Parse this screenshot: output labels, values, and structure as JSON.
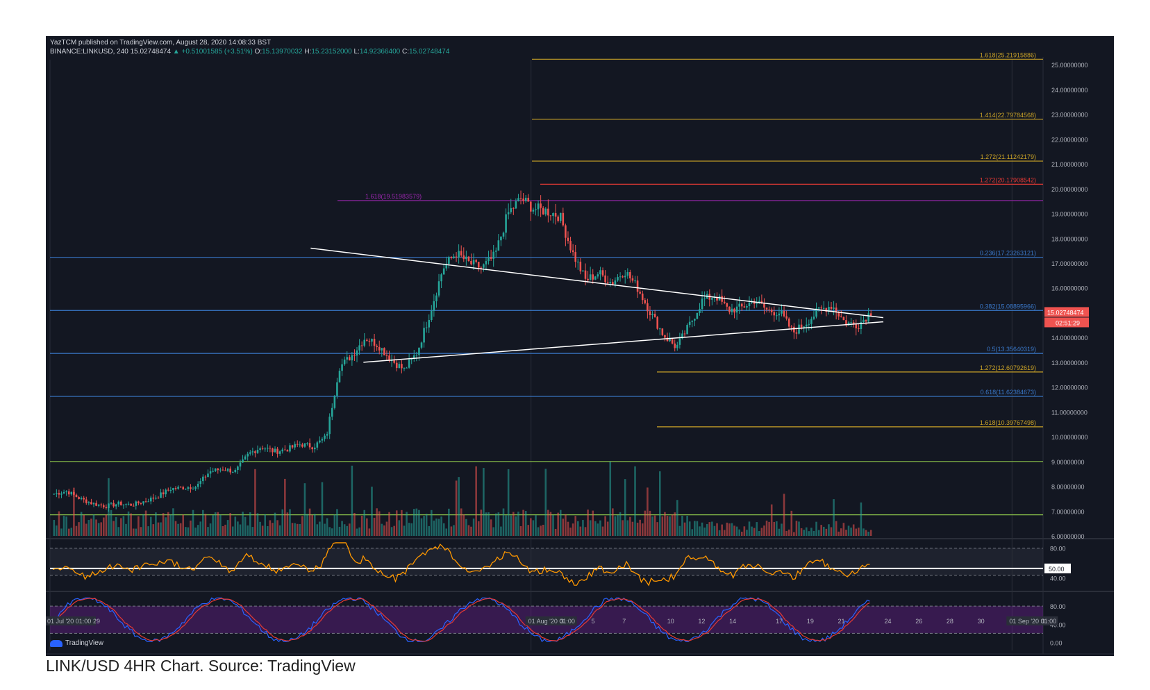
{
  "header": {
    "published": "YazTCM published on TradingView.com, August 28, 2020 14:08:33 BST",
    "symbol": "BINANCE:LINKUSD, 240",
    "last": "15.02748474",
    "change": "▲ +0.51001585 (+3.51%)",
    "o_label": "O:",
    "o_value": "15.13970032",
    "h_label": "H:",
    "h_value": "15.23152000",
    "l_label": "L:",
    "l_value": "14.92366400",
    "c_label": "C:",
    "c_value": "15.02748474"
  },
  "brand": "TradingView",
  "caption": "LINK/USD 4HR Chart. Source: TradingView",
  "colors": {
    "background": "#131722",
    "up": "#26a69a",
    "down": "#ef5350",
    "fib_yellow": "#c9a227",
    "fib_blue": "#3a78c9",
    "red_level": "#e53935",
    "purple_level": "#9c27b0",
    "green_level": "#8bc34a",
    "rsi": "#ff9800",
    "stoch_k": "#2962ff",
    "stoch_d": "#e53935"
  },
  "chart_data": {
    "type": "candlestick",
    "price_axis": {
      "ylim": [
        6,
        25.2
      ],
      "ticks": [
        "25.00000000",
        "24.00000000",
        "23.00000000",
        "22.00000000",
        "21.00000000",
        "20.00000000",
        "19.00000000",
        "18.00000000",
        "17.00000000",
        "16.00000000",
        "15.00000000",
        "14.00000000",
        "13.00000000",
        "12.00000000",
        "11.00000000",
        "10.00000000",
        "9.00000000",
        "8.00000000",
        "7.00000000",
        "6.00000000"
      ]
    },
    "x_axis": {
      "labels": [
        "01 Jul '20  01:00",
        "29",
        "01 Aug '20  01:00",
        "3",
        "5",
        "7",
        "10",
        "12",
        "14",
        "17",
        "19",
        "21",
        "24",
        "26",
        "28",
        "30",
        "01 Sep '20  01:00",
        "3"
      ]
    },
    "current_price": "15.02748474",
    "countdown": "02:51:29",
    "levels": [
      {
        "label": "1.618(25.21915886)",
        "value": 25.21915886,
        "kind": "fib_yellow"
      },
      {
        "label": "1.414(22.79784568)",
        "value": 22.79784568,
        "kind": "fib_yellow"
      },
      {
        "label": "1.272(21.11242179)",
        "value": 21.11242179,
        "kind": "fib_yellow"
      },
      {
        "label": "1.272(20.17908542)",
        "value": 20.17908542,
        "kind": "red_level"
      },
      {
        "label": "1.618(19.51983579)",
        "value": 19.51983579,
        "kind": "purple_level"
      },
      {
        "label": "0.236(17.23263121)",
        "value": 17.23263121,
        "kind": "fib_blue"
      },
      {
        "label": "0.382(15.08895966)",
        "value": 15.08895966,
        "kind": "fib_blue"
      },
      {
        "label": "0.5(13.35640319)",
        "value": 13.35640319,
        "kind": "fib_blue"
      },
      {
        "label": "1.272(12.60792619)",
        "value": 12.60792619,
        "kind": "fib_yellow"
      },
      {
        "label": "0.618(11.62384673)",
        "value": 11.62384673,
        "kind": "fib_blue"
      },
      {
        "label": "1.618(10.39767498)",
        "value": 10.39767498,
        "kind": "fib_yellow"
      },
      {
        "label": "",
        "value": 9.0,
        "kind": "green_level"
      },
      {
        "label": "",
        "value": 6.85,
        "kind": "green_level"
      }
    ],
    "triangle": {
      "upper": [
        [
          17.8,
          17.6
        ],
        [
          28.8,
          14.9
        ]
      ],
      "lower": [
        [
          21.2,
          13.0
        ],
        [
          28.8,
          14.7
        ]
      ]
    },
    "close_series": [
      {
        "x": 0,
        "y": 7.7
      },
      {
        "x": 1,
        "y": 7.8
      },
      {
        "x": 2,
        "y": 7.5
      },
      {
        "x": 3,
        "y": 7.3
      },
      {
        "x": 4,
        "y": 7.2
      },
      {
        "x": 5,
        "y": 7.3
      },
      {
        "x": 6,
        "y": 7.25
      },
      {
        "x": 7,
        "y": 7.4
      },
      {
        "x": 8,
        "y": 7.6
      },
      {
        "x": 9,
        "y": 7.9
      },
      {
        "x": 10,
        "y": 7.95
      },
      {
        "x": 11,
        "y": 8.0
      },
      {
        "x": 12,
        "y": 8.6
      },
      {
        "x": 13,
        "y": 8.7
      },
      {
        "x": 14,
        "y": 8.6
      },
      {
        "x": 15,
        "y": 9.3
      },
      {
        "x": 16,
        "y": 9.6
      },
      {
        "x": 17,
        "y": 9.4
      },
      {
        "x": 18,
        "y": 9.5
      },
      {
        "x": 19,
        "y": 9.7
      },
      {
        "x": 20,
        "y": 9.6
      },
      {
        "x": 21,
        "y": 10.0
      },
      {
        "x": 22,
        "y": 12.8
      },
      {
        "x": 23,
        "y": 13.3
      },
      {
        "x": 24,
        "y": 14.0
      },
      {
        "x": 25,
        "y": 13.7
      },
      {
        "x": 26,
        "y": 13.1
      },
      {
        "x": 27,
        "y": 12.7
      },
      {
        "x": 28,
        "y": 13.4
      },
      {
        "x": 29,
        "y": 15.0
      },
      {
        "x": 30,
        "y": 16.8
      },
      {
        "x": 31,
        "y": 17.4
      },
      {
        "x": 32,
        "y": 17.0
      },
      {
        "x": 33,
        "y": 16.8
      },
      {
        "x": 34,
        "y": 17.3
      },
      {
        "x": 35,
        "y": 19.0
      },
      {
        "x": 36,
        "y": 19.6
      },
      {
        "x": 37,
        "y": 19.2
      },
      {
        "x": 38,
        "y": 19.1
      },
      {
        "x": 39,
        "y": 18.9
      },
      {
        "x": 40,
        "y": 17.4
      },
      {
        "x": 41,
        "y": 16.3
      },
      {
        "x": 42,
        "y": 16.6
      },
      {
        "x": 43,
        "y": 16.2
      },
      {
        "x": 44,
        "y": 16.7
      },
      {
        "x": 45,
        "y": 16.0
      },
      {
        "x": 46,
        "y": 15.0
      },
      {
        "x": 47,
        "y": 14.1
      },
      {
        "x": 48,
        "y": 13.6
      },
      {
        "x": 49,
        "y": 14.5
      },
      {
        "x": 50,
        "y": 15.5
      },
      {
        "x": 51,
        "y": 15.7
      },
      {
        "x": 52,
        "y": 15.1
      },
      {
        "x": 53,
        "y": 15.2
      },
      {
        "x": 54,
        "y": 15.5
      },
      {
        "x": 55,
        "y": 15.1
      },
      {
        "x": 56,
        "y": 15.0
      },
      {
        "x": 57,
        "y": 14.2
      },
      {
        "x": 58,
        "y": 14.6
      },
      {
        "x": 59,
        "y": 15.1
      },
      {
        "x": 60,
        "y": 15.3
      },
      {
        "x": 61,
        "y": 14.6
      },
      {
        "x": 62,
        "y": 14.5
      },
      {
        "x": 63,
        "y": 15.03
      }
    ],
    "rsi": {
      "levels": [
        "80.00",
        "50.00",
        "40.00"
      ]
    },
    "stoch": {
      "levels": [
        "80.00",
        "40.00",
        "0.00"
      ]
    }
  }
}
